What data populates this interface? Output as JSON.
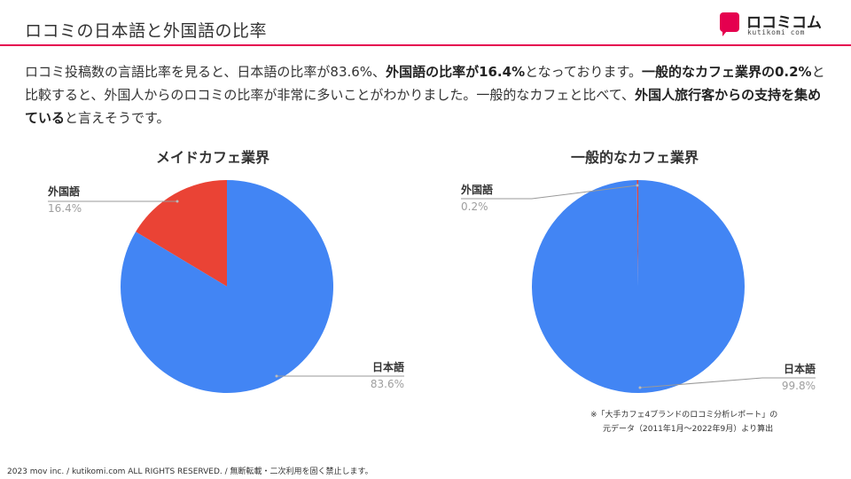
{
  "header": {
    "title": "ロコミの日本語と外国語の比率",
    "logo_text": "ロコミコム",
    "logo_sub": "kutikomi com"
  },
  "summary": {
    "s1": "ロコミ投稿数の言語比率を見ると、日本語の比率が83.6%、",
    "s2": "外国語の比率が16.4%",
    "s3": "となっております。",
    "s4": "一般的なカフェ業界の0.2%",
    "s5": "と比較すると、外国人からのロコミの比率が非常に多いことがわかりました。一般的なカフェと比べて、",
    "s6": "外国人旅行客からの支持を集めている",
    "s7": "と言えそうです。"
  },
  "colors": {
    "japanese": "#4285f4",
    "foreign": "#ea4335",
    "accent": "#e5004f"
  },
  "chart_data": [
    {
      "type": "pie",
      "title": "メイドカフェ業界",
      "slices": [
        {
          "label": "外国語",
          "value": 16.4,
          "value_label": "16.4%"
        },
        {
          "label": "日本語",
          "value": 83.6,
          "value_label": "83.6%"
        }
      ]
    },
    {
      "type": "pie",
      "title": "一般的なカフェ業界",
      "slices": [
        {
          "label": "外国語",
          "value": 0.2,
          "value_label": "0.2%"
        },
        {
          "label": "日本語",
          "value": 99.8,
          "value_label": "99.8%"
        }
      ]
    }
  ],
  "note": {
    "line1": "※「大手カフェ4ブランドのロコミ分析レポート」の",
    "line2": "元データ（2011年1月〜2022年9月）より算出"
  },
  "footer": "2023 mov inc. / kutikomi.com ALL RIGHTS RESERVED. / 無断転載・二次利用を固く禁止します。"
}
